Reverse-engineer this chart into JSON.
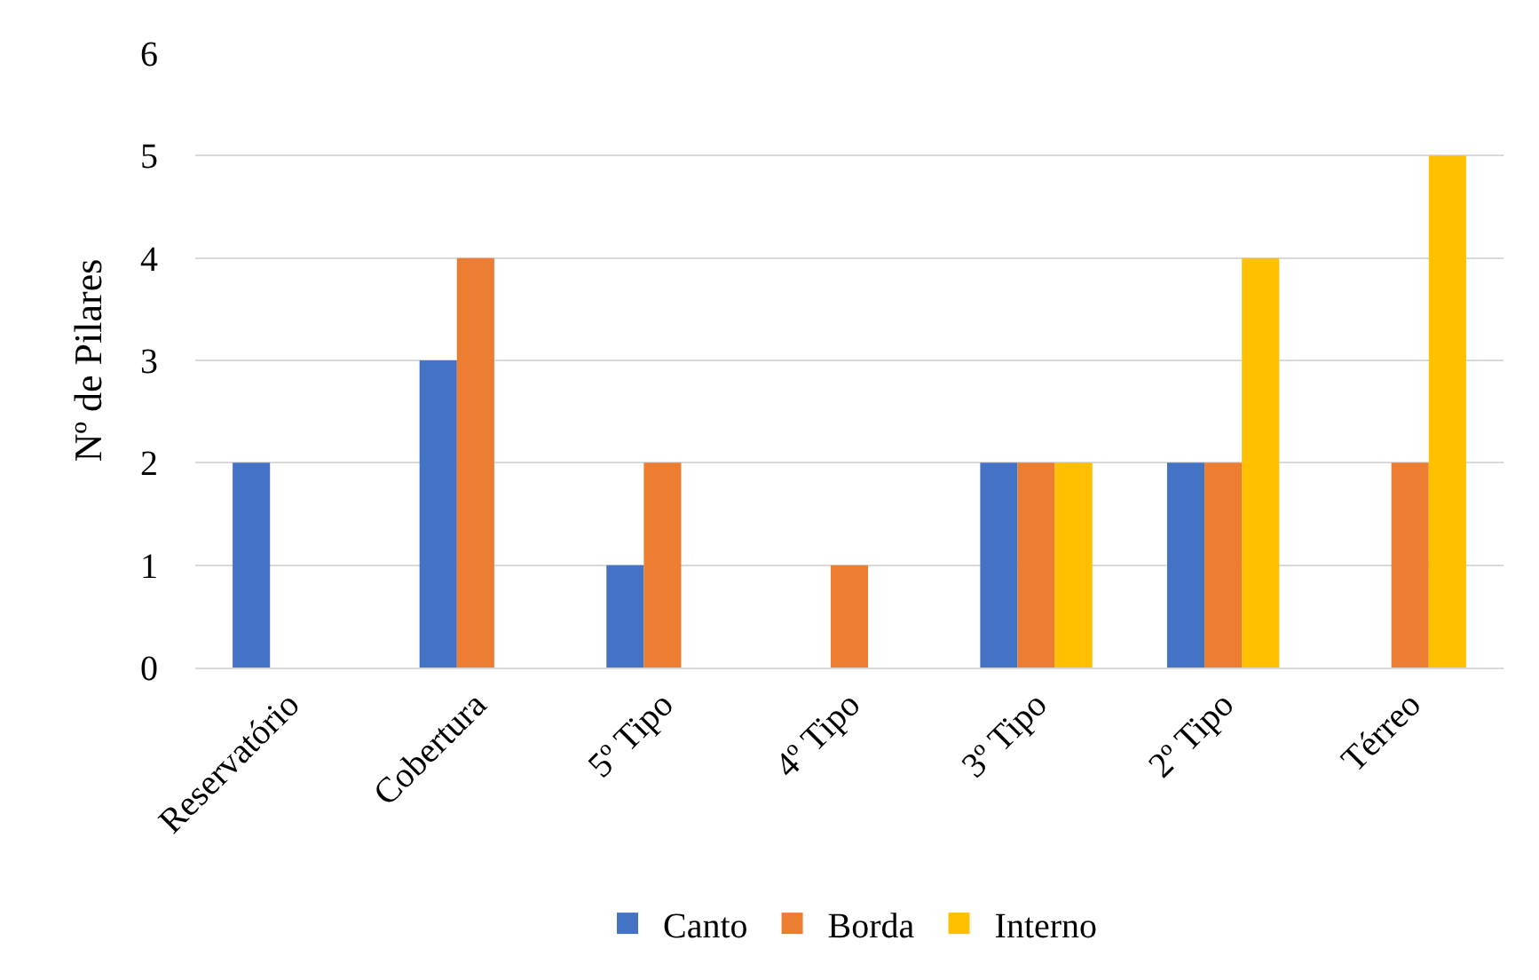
{
  "chart_data": {
    "type": "bar",
    "ylabel": "Nº de Pilares",
    "categories": [
      "Reservatório",
      "Cobertura",
      "5º Tipo",
      "4º Tipo",
      "3º Tipo",
      "2º Tipo",
      "Térreo"
    ],
    "series": [
      {
        "name": "Canto",
        "color": "#4472c4",
        "values": [
          2,
          3,
          1,
          0,
          2,
          2,
          0
        ]
      },
      {
        "name": "Borda",
        "color": "#ed7d31",
        "values": [
          0,
          4,
          2,
          1,
          2,
          2,
          2
        ]
      },
      {
        "name": "Interno",
        "color": "#ffc000",
        "values": [
          0,
          0,
          0,
          0,
          2,
          4,
          5
        ]
      }
    ],
    "ylim": [
      0,
      6
    ],
    "yticks": [
      0,
      1,
      2,
      3,
      4,
      5,
      6
    ],
    "grid": "y",
    "legend": "bottom"
  }
}
